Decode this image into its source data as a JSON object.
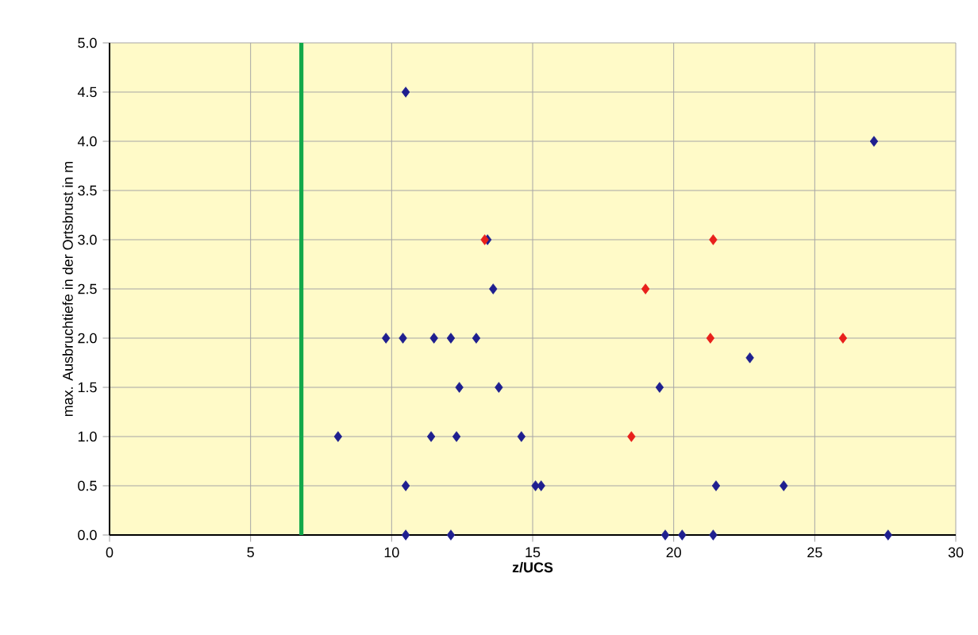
{
  "chart_data": {
    "type": "scatter",
    "xlabel": "z/UCS",
    "ylabel": "max. Ausbruchtiefe in der Ortsbrust in m",
    "xlim": [
      0,
      30
    ],
    "xticks": [
      0,
      5,
      10,
      15,
      20,
      25,
      30
    ],
    "ylim": [
      0,
      5
    ],
    "yticks": [
      {
        "value": 0,
        "label": "0.0"
      },
      {
        "value": 0.5,
        "label": "0.5"
      },
      {
        "value": 1,
        "label": "1.0"
      },
      {
        "value": 1.5,
        "label": "1.5"
      },
      {
        "value": 2,
        "label": "2.0"
      },
      {
        "value": 2.5,
        "label": "2.5"
      },
      {
        "value": 3,
        "label": "3.0"
      },
      {
        "value": 3.5,
        "label": "3.5"
      },
      {
        "value": 4,
        "label": "4.0"
      },
      {
        "value": 4.5,
        "label": "4.5"
      },
      {
        "value": 5,
        "label": "5.0"
      }
    ],
    "grid": true,
    "marker": "diamond",
    "series": [
      {
        "color": "#1f1f8f",
        "x": [
          10.5,
          13.4,
          13.6,
          9.8,
          10.4,
          11.5,
          12.1,
          13.0,
          12.4,
          13.8,
          8.1,
          11.4,
          12.3,
          14.6,
          10.5,
          15.1,
          10.5,
          12.1,
          27.1,
          22.7,
          19.5,
          15.3,
          21.5,
          23.9,
          19.7,
          20.3,
          21.4,
          27.6
        ],
        "values": [
          4.5,
          3.0,
          2.5,
          2.0,
          2.0,
          2.0,
          2.0,
          2.0,
          1.5,
          1.5,
          1.0,
          1.0,
          1.0,
          1.0,
          0.5,
          0.5,
          0,
          0,
          4.0,
          1.8,
          1.5,
          0.5,
          0.5,
          0.5,
          0,
          0,
          0,
          0
        ]
      },
      {
        "color": "#e8201c",
        "x": [
          13.3,
          21.4,
          19.0,
          21.3,
          26.0,
          18.5
        ],
        "values": [
          3.0,
          3.0,
          2.5,
          2.0,
          2.0,
          1.0
        ]
      }
    ],
    "ref_lines": [
      {
        "axis": "x",
        "value": 6.8,
        "color": "#12a84a"
      }
    ]
  }
}
